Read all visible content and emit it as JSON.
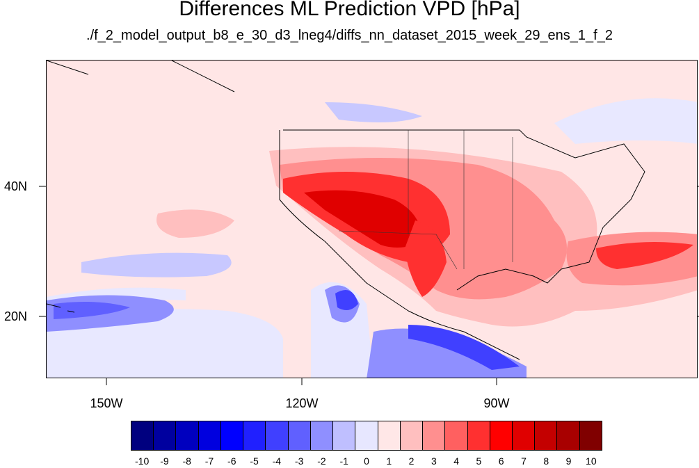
{
  "title": "Differences ML Prediction VPD [hPa]",
  "subtitle": "./f_2_model_output_b8_e_30_d3_lneg4/diffs_nn_dataset_2015_week_29_ens_1_f_2",
  "lat_labels": [
    "40N",
    "20N"
  ],
  "lon_labels": [
    "150W",
    "120W",
    "90W"
  ],
  "colorbar": {
    "ticks": [
      "-10",
      "-9",
      "-8",
      "-7",
      "-6",
      "-5",
      "-4",
      "-3",
      "-2",
      "-1",
      "0",
      "1",
      "2",
      "3",
      "4",
      "5",
      "6",
      "7",
      "8",
      "9",
      "10"
    ],
    "colors": [
      "#00007f",
      "#00009f",
      "#0000bf",
      "#0000df",
      "#0000ff",
      "#2020ff",
      "#4040ff",
      "#6060ff",
      "#8f8fff",
      "#bfbfff",
      "#e7e7ff",
      "#ffe7e7",
      "#ffbfbf",
      "#ff8f8f",
      "#ff6060",
      "#ff3030",
      "#ff0000",
      "#e00000",
      "#c40000",
      "#a80000",
      "#800000"
    ]
  },
  "map": {
    "background_color": "#ffe6e6",
    "region": "Contiguous United States and surrounding Pacific and Gulf",
    "colormap": "diverging blue-white-red"
  }
}
